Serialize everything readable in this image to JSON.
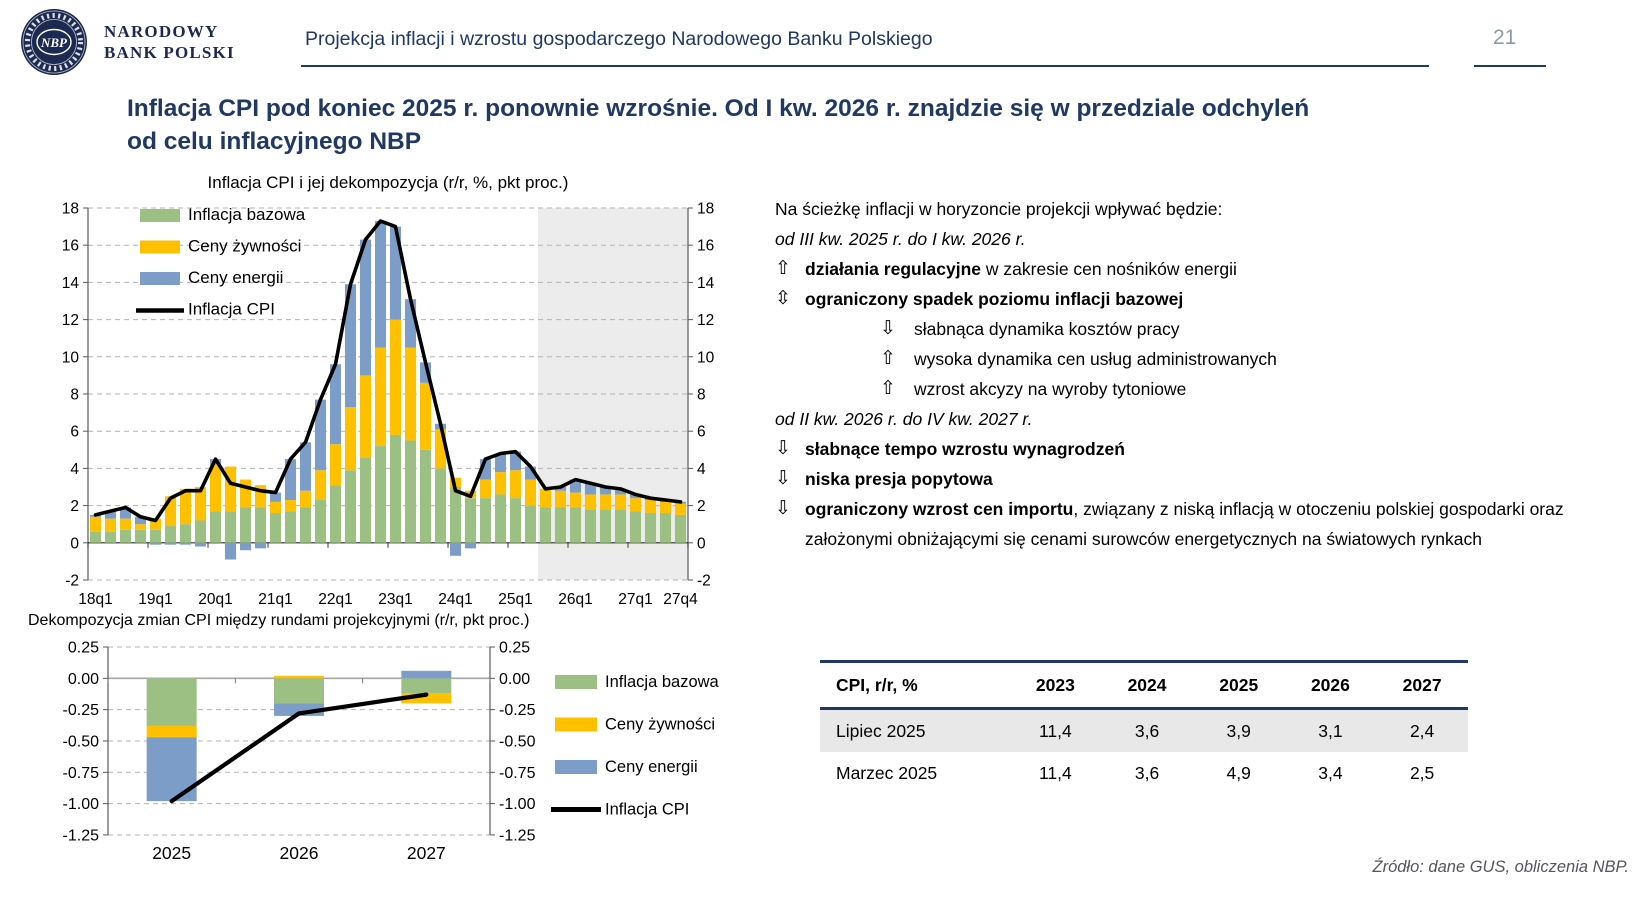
{
  "header": {
    "logo": {
      "badge": "NBP",
      "line1": "NARODOWY",
      "line2": "BANK POLSKI"
    },
    "title": "Projekcja inflacji i wzrostu gospodarczego Narodowego Banku Polskiego",
    "page_number": "21"
  },
  "slide_title": {
    "line1": "Inflacja CPI pod koniec 2025 r. ponownie wzrośnie. Od I kw. 2026 r. znajdzie się w przedziale odchyleń",
    "line2": "od celu inflacyjnego NBP"
  },
  "colors": {
    "navy": "#1F3864",
    "core": "#9CBF84",
    "food": "#FFC000",
    "energy": "#7D9DC9",
    "cpi_line": "#000000",
    "projection_shade": "#ECECEC",
    "grid": "#B3B3B3",
    "axis": "#595959"
  },
  "chart_data": [
    {
      "type": "bar",
      "subtype": "stacked-bars-with-line",
      "title": "Inflacja CPI i jej dekompozycja (r/r, %, pkt proc.)",
      "x_tick_labels": [
        "18q1",
        "19q1",
        "20q1",
        "21q1",
        "22q1",
        "23q1",
        "24q1",
        "25q1",
        "26q1",
        "27q1",
        "27q4"
      ],
      "y_ticks": [
        18,
        16,
        14,
        12,
        10,
        8,
        6,
        4,
        2,
        0,
        -2
      ],
      "ylim": [
        -2,
        18
      ],
      "legend": [
        "Inflacja bazowa",
        "Ceny żywności",
        "Ceny energii",
        "Inflacja CPI"
      ],
      "projection_start_index": 30,
      "n_quarters": 40,
      "series": {
        "core": [
          0.6,
          0.6,
          0.7,
          0.7,
          0.7,
          0.9,
          1.0,
          1.2,
          1.7,
          1.7,
          1.9,
          1.9,
          1.6,
          1.7,
          1.9,
          2.3,
          3.1,
          3.9,
          4.6,
          5.2,
          5.8,
          5.5,
          5.0,
          4.0,
          3.0,
          2.4,
          2.4,
          2.6,
          2.4,
          2.0,
          1.9,
          1.9,
          1.9,
          1.8,
          1.8,
          1.8,
          1.7,
          1.6,
          1.6,
          1.5
        ],
        "food": [
          0.8,
          0.7,
          0.6,
          0.3,
          0.6,
          1.6,
          1.9,
          1.8,
          2.5,
          2.4,
          1.5,
          1.2,
          0.6,
          0.6,
          0.9,
          1.6,
          2.2,
          3.4,
          4.4,
          5.3,
          6.2,
          5.0,
          3.6,
          2.1,
          0.5,
          0.4,
          1.0,
          1.2,
          1.5,
          1.4,
          1.0,
          0.9,
          0.8,
          0.8,
          0.8,
          0.8,
          0.7,
          0.7,
          0.6,
          0.6
        ],
        "energy": [
          0.1,
          0.4,
          0.6,
          0.4,
          -0.1,
          -0.1,
          -0.1,
          -0.2,
          0.3,
          -0.9,
          -0.4,
          -0.3,
          0.5,
          2.2,
          2.6,
          3.8,
          4.3,
          6.6,
          7.3,
          6.8,
          5.0,
          2.6,
          1.1,
          0.3,
          -0.7,
          -0.3,
          1.1,
          1.0,
          1.0,
          0.7,
          0.0,
          0.2,
          0.7,
          0.6,
          0.4,
          0.3,
          0.2,
          0.1,
          0.1,
          0.1
        ],
        "cpi": [
          1.5,
          1.7,
          1.9,
          1.4,
          1.2,
          2.4,
          2.8,
          2.8,
          4.5,
          3.2,
          3.0,
          2.8,
          2.7,
          4.5,
          5.4,
          7.7,
          9.6,
          13.9,
          16.3,
          17.3,
          17.0,
          13.1,
          9.7,
          6.4,
          2.8,
          2.5,
          4.5,
          4.8,
          4.9,
          4.1,
          2.9,
          3.0,
          3.4,
          3.2,
          3.0,
          2.9,
          2.6,
          2.4,
          2.3,
          2.2
        ]
      }
    },
    {
      "type": "bar",
      "subtype": "stacked-bars-with-line",
      "title": "Dekompozycja zmian CPI między rundami projekcyjnymi (r/r, pkt proc.)",
      "categories": [
        "2025",
        "2026",
        "2027"
      ],
      "y_ticks": [
        "0.25",
        "0.00",
        "-0.25",
        "-0.50",
        "-0.75",
        "-1.00",
        "-1.25"
      ],
      "ylim": [
        -1.25,
        0.25
      ],
      "legend": [
        "Inflacja bazowa",
        "Ceny żywności",
        "Ceny energii",
        "Inflacja CPI"
      ],
      "series": {
        "core": [
          -0.38,
          -0.2,
          -0.12
        ],
        "food": [
          -0.09,
          0.02,
          -0.08
        ],
        "energy": [
          -0.51,
          -0.1,
          0.06
        ],
        "cpi": [
          -0.98,
          -0.28,
          -0.13
        ]
      }
    }
  ],
  "right_panel": {
    "intro": "Na ścieżkę inflacji w horyzoncie projekcji wpływać będzie:",
    "period1": "od III kw. 2025 r. do I kw. 2026 r.",
    "bullets1": [
      {
        "arrow": "up",
        "bold": "działania regulacyjne",
        "rest": " w zakresie cen nośników energii"
      },
      {
        "arrow": "updown",
        "bold": "ograniczony spadek poziomu inflacji bazowej",
        "rest": ""
      }
    ],
    "subbullets": [
      {
        "arrow": "down",
        "text": "słabnąca dynamika kosztów pracy"
      },
      {
        "arrow": "up",
        "text": "wysoka dynamika cen usług administrowanych"
      },
      {
        "arrow": "up",
        "text": "wzrost akcyzy na wyroby tytoniowe"
      }
    ],
    "period2": "od II kw. 2026 r. do IV kw. 2027 r.",
    "bullets2": [
      {
        "arrow": "down",
        "bold": "słabnące tempo wzrostu wynagrodzeń",
        "rest": ""
      },
      {
        "arrow": "down",
        "bold": "niska presja popytowa",
        "rest": ""
      },
      {
        "arrow": "down",
        "bold": "ograniczony wzrost cen importu",
        "rest": ", związany z niską inflacją w otoczeniu polskiej gospodarki oraz założonymi obniżającymi się cenami surowców energetycznych na światowych rynkach"
      }
    ],
    "arrow_glyphs": {
      "up": "⇧",
      "down": "⇩",
      "updown": "⇳"
    }
  },
  "table": {
    "col0_header": "CPI, r/r, %",
    "year_headers": [
      "2023",
      "2024",
      "2025",
      "2026",
      "2027"
    ],
    "rows": [
      {
        "label": "Lipiec 2025",
        "values": [
          "11,4",
          "3,6",
          "3,9",
          "3,1",
          "2,4"
        ],
        "highlight": true
      },
      {
        "label": "Marzec 2025",
        "values": [
          "11,4",
          "3,6",
          "4,9",
          "3,4",
          "2,5"
        ],
        "highlight": false
      }
    ]
  },
  "source": "Źródło: dane GUS, obliczenia NBP."
}
